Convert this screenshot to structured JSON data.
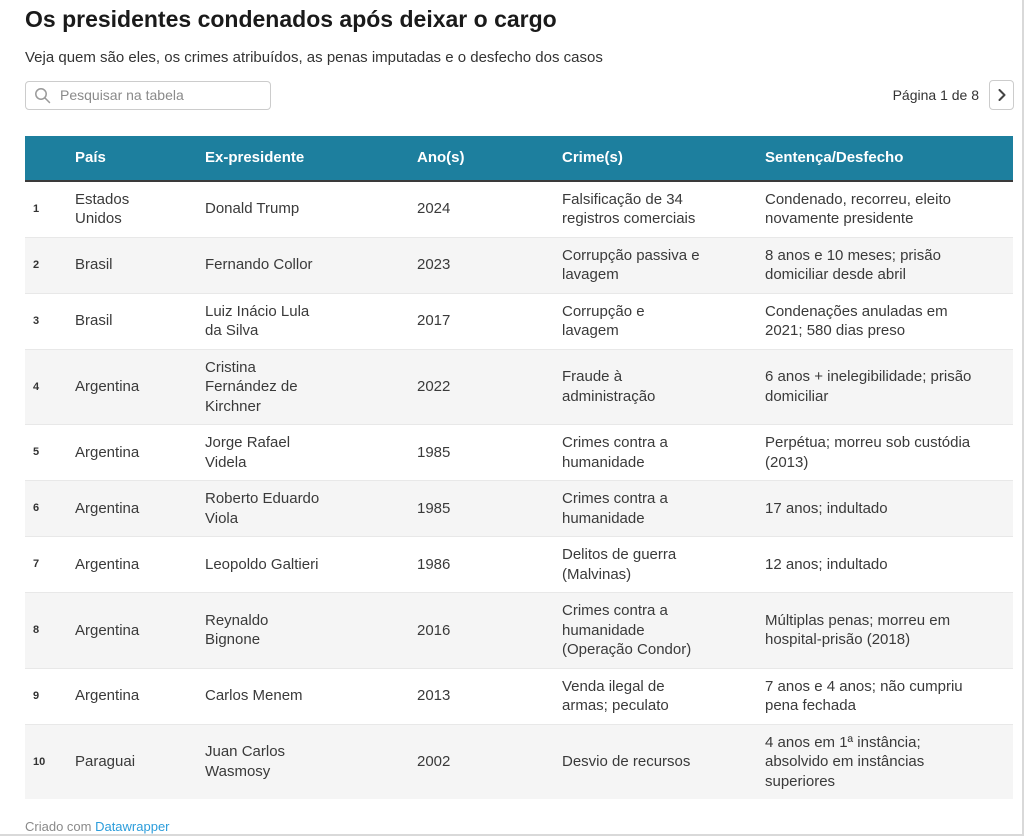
{
  "header": {
    "title": "Os presidentes condenados após deixar o cargo",
    "subtitle": "Veja quem são eles, os crimes atribuídos, as penas imputadas e o desfecho dos casos"
  },
  "controls": {
    "search_placeholder": "Pesquisar na tabela",
    "pagination_label": "Página 1 de 8"
  },
  "chart_data": {
    "type": "table",
    "title": "Os presidentes condenados após deixar o cargo",
    "subtitle": "Veja quem são eles, os crimes atribuídos, as penas imputadas e o desfecho dos casos",
    "columns": [
      "",
      "País",
      "Ex-presidente",
      "Ano(s)",
      "Crime(s)",
      "Sentença/Desfecho"
    ],
    "rows": [
      [
        "1",
        "Estados Unidos",
        "Donald Trump",
        "2024",
        "Falsificação de 34 registros comerciais",
        "Condenado, recorreu, eleito novamente presidente"
      ],
      [
        "2",
        "Brasil",
        "Fernando Collor",
        "2023",
        "Corrupção passiva e lavagem",
        "8 anos e 10 meses; prisão domiciliar desde abril"
      ],
      [
        "3",
        "Brasil",
        "Luiz Inácio Lula da Silva",
        "2017",
        "Corrupção e lavagem",
        "Condenações anuladas em 2021; 580 dias preso"
      ],
      [
        "4",
        "Argentina",
        "Cristina Fernández de Kirchner",
        "2022",
        "Fraude à administração",
        "6 anos + inelegibilidade; prisão domiciliar"
      ],
      [
        "5",
        "Argentina",
        "Jorge Rafael Videla",
        "1985",
        "Crimes contra a humanidade",
        "Perpétua; morreu sob custódia (2013)"
      ],
      [
        "6",
        "Argentina",
        "Roberto Eduardo Viola",
        "1985",
        "Crimes contra a humanidade",
        "17 anos; indultado"
      ],
      [
        "7",
        "Argentina",
        "Leopoldo Galtieri",
        "1986",
        "Delitos de guerra (Malvinas)",
        "12 anos; indultado"
      ],
      [
        "8",
        "Argentina",
        "Reynaldo Bignone",
        "2016",
        "Crimes contra a humanidade (Operação Condor)",
        "Múltiplas penas; morreu em hospital-prisão (2018)"
      ],
      [
        "9",
        "Argentina",
        "Carlos Menem",
        "2013",
        "Venda ilegal de armas; peculato",
        "7 anos e 4 anos; não cumpriu pena fechada"
      ],
      [
        "10",
        "Paraguai",
        "Juan Carlos Wasmosy",
        "2002",
        "Desvio de recursos",
        "4 anos em 1ª instância; absolvido em instâncias superiores"
      ]
    ],
    "pagination": {
      "current_page": 1,
      "total_pages": 8
    },
    "layout_hints": {
      "zebra_striping": true,
      "header_position": "top"
    }
  },
  "footer": {
    "credit": "Criado com ",
    "link_label": "Datawrapper"
  },
  "colors": {
    "header_bg": "#1d7f9e",
    "header_text": "#ffffff",
    "zebra_bg": "#f5f5f5",
    "link": "#2c9ddb",
    "header_rule": "#3a3a3a"
  }
}
